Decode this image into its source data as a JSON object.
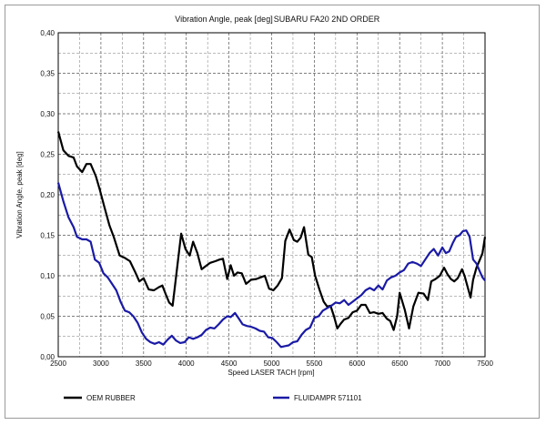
{
  "chart_data": {
    "type": "line",
    "title": "Vibration Angle, peak [deg]",
    "subtitle": "SUBARU FA20 2ND ORDER",
    "xlabel": "Speed LASER TACH [rpm]",
    "ylabel": "Vibration Angle, peak [deg]",
    "xlim": [
      2500,
      7500
    ],
    "ylim": [
      0,
      0.4
    ],
    "x_ticks": [
      2500,
      3000,
      3500,
      4000,
      4500,
      5000,
      5500,
      6000,
      6500,
      7000,
      7500
    ],
    "y_ticks": [
      "0,00",
      "0,05",
      "0,10",
      "0,15",
      "0,20",
      "0,25",
      "0,30",
      "0,35",
      "0,40"
    ],
    "grid": true,
    "legend_position": "bottom",
    "series": [
      {
        "name": "OEM RUBBER",
        "color": "#000000",
        "points": [
          [
            2500,
            0.278
          ],
          [
            2560,
            0.255
          ],
          [
            2620,
            0.248
          ],
          [
            2680,
            0.246
          ],
          [
            2720,
            0.235
          ],
          [
            2780,
            0.228
          ],
          [
            2830,
            0.238
          ],
          [
            2880,
            0.238
          ],
          [
            2940,
            0.223
          ],
          [
            2990,
            0.205
          ],
          [
            3040,
            0.185
          ],
          [
            3100,
            0.162
          ],
          [
            3150,
            0.148
          ],
          [
            3220,
            0.125
          ],
          [
            3280,
            0.122
          ],
          [
            3340,
            0.118
          ],
          [
            3400,
            0.105
          ],
          [
            3450,
            0.093
          ],
          [
            3500,
            0.097
          ],
          [
            3560,
            0.083
          ],
          [
            3620,
            0.082
          ],
          [
            3680,
            0.086
          ],
          [
            3720,
            0.088
          ],
          [
            3760,
            0.077
          ],
          [
            3800,
            0.067
          ],
          [
            3840,
            0.063
          ],
          [
            3880,
            0.098
          ],
          [
            3940,
            0.152
          ],
          [
            3990,
            0.133
          ],
          [
            4040,
            0.125
          ],
          [
            4080,
            0.142
          ],
          [
            4130,
            0.128
          ],
          [
            4180,
            0.108
          ],
          [
            4230,
            0.112
          ],
          [
            4280,
            0.116
          ],
          [
            4340,
            0.118
          ],
          [
            4390,
            0.12
          ],
          [
            4430,
            0.121
          ],
          [
            4480,
            0.096
          ],
          [
            4520,
            0.113
          ],
          [
            4560,
            0.1
          ],
          [
            4600,
            0.104
          ],
          [
            4650,
            0.103
          ],
          [
            4700,
            0.09
          ],
          [
            4760,
            0.095
          ],
          [
            4820,
            0.096
          ],
          [
            4870,
            0.098
          ],
          [
            4920,
            0.1
          ],
          [
            4970,
            0.084
          ],
          [
            5020,
            0.082
          ],
          [
            5070,
            0.088
          ],
          [
            5120,
            0.097
          ],
          [
            5160,
            0.143
          ],
          [
            5210,
            0.157
          ],
          [
            5260,
            0.144
          ],
          [
            5300,
            0.142
          ],
          [
            5340,
            0.147
          ],
          [
            5380,
            0.16
          ],
          [
            5430,
            0.126
          ],
          [
            5470,
            0.123
          ],
          [
            5510,
            0.1
          ],
          [
            5560,
            0.083
          ],
          [
            5610,
            0.068
          ],
          [
            5650,
            0.062
          ],
          [
            5690,
            0.063
          ],
          [
            5730,
            0.05
          ],
          [
            5770,
            0.035
          ],
          [
            5810,
            0.041
          ],
          [
            5850,
            0.046
          ],
          [
            5900,
            0.048
          ],
          [
            5950,
            0.055
          ],
          [
            6000,
            0.057
          ],
          [
            6050,
            0.064
          ],
          [
            6100,
            0.064
          ],
          [
            6150,
            0.054
          ],
          [
            6200,
            0.055
          ],
          [
            6250,
            0.053
          ],
          [
            6300,
            0.054
          ],
          [
            6350,
            0.047
          ],
          [
            6390,
            0.044
          ],
          [
            6430,
            0.033
          ],
          [
            6470,
            0.05
          ],
          [
            6500,
            0.079
          ],
          [
            6560,
            0.058
          ],
          [
            6610,
            0.035
          ],
          [
            6660,
            0.062
          ],
          [
            6720,
            0.079
          ],
          [
            6780,
            0.078
          ],
          [
            6830,
            0.07
          ],
          [
            6870,
            0.093
          ],
          [
            6920,
            0.096
          ],
          [
            6970,
            0.1
          ],
          [
            7020,
            0.11
          ],
          [
            7060,
            0.102
          ],
          [
            7100,
            0.096
          ],
          [
            7140,
            0.093
          ],
          [
            7180,
            0.097
          ],
          [
            7230,
            0.108
          ],
          [
            7260,
            0.1
          ],
          [
            7300,
            0.085
          ],
          [
            7330,
            0.073
          ],
          [
            7360,
            0.095
          ],
          [
            7400,
            0.11
          ],
          [
            7440,
            0.12
          ],
          [
            7470,
            0.128
          ],
          [
            7500,
            0.148
          ]
        ]
      },
      {
        "name": "FLUIDAMPR 571101",
        "color": "#1a1aa6",
        "points": [
          [
            2500,
            0.215
          ],
          [
            2560,
            0.192
          ],
          [
            2620,
            0.172
          ],
          [
            2680,
            0.16
          ],
          [
            2720,
            0.148
          ],
          [
            2780,
            0.145
          ],
          [
            2830,
            0.145
          ],
          [
            2880,
            0.142
          ],
          [
            2930,
            0.12
          ],
          [
            2980,
            0.116
          ],
          [
            3030,
            0.103
          ],
          [
            3080,
            0.098
          ],
          [
            3130,
            0.09
          ],
          [
            3180,
            0.082
          ],
          [
            3230,
            0.068
          ],
          [
            3280,
            0.057
          ],
          [
            3330,
            0.055
          ],
          [
            3380,
            0.05
          ],
          [
            3430,
            0.042
          ],
          [
            3480,
            0.03
          ],
          [
            3530,
            0.022
          ],
          [
            3580,
            0.018
          ],
          [
            3630,
            0.016
          ],
          [
            3680,
            0.018
          ],
          [
            3730,
            0.015
          ],
          [
            3780,
            0.021
          ],
          [
            3830,
            0.026
          ],
          [
            3880,
            0.02
          ],
          [
            3930,
            0.017
          ],
          [
            3980,
            0.018
          ],
          [
            4030,
            0.024
          ],
          [
            4080,
            0.022
          ],
          [
            4130,
            0.024
          ],
          [
            4180,
            0.027
          ],
          [
            4230,
            0.033
          ],
          [
            4280,
            0.036
          ],
          [
            4330,
            0.035
          ],
          [
            4380,
            0.04
          ],
          [
            4430,
            0.046
          ],
          [
            4480,
            0.05
          ],
          [
            4520,
            0.049
          ],
          [
            4570,
            0.054
          ],
          [
            4610,
            0.048
          ],
          [
            4660,
            0.04
          ],
          [
            4710,
            0.038
          ],
          [
            4760,
            0.037
          ],
          [
            4810,
            0.035
          ],
          [
            4860,
            0.032
          ],
          [
            4910,
            0.031
          ],
          [
            4960,
            0.024
          ],
          [
            5010,
            0.023
          ],
          [
            5060,
            0.018
          ],
          [
            5110,
            0.012
          ],
          [
            5150,
            0.013
          ],
          [
            5200,
            0.014
          ],
          [
            5250,
            0.018
          ],
          [
            5300,
            0.019
          ],
          [
            5350,
            0.027
          ],
          [
            5400,
            0.033
          ],
          [
            5450,
            0.036
          ],
          [
            5500,
            0.048
          ],
          [
            5550,
            0.05
          ],
          [
            5600,
            0.057
          ],
          [
            5650,
            0.06
          ],
          [
            5700,
            0.063
          ],
          [
            5750,
            0.067
          ],
          [
            5800,
            0.066
          ],
          [
            5850,
            0.07
          ],
          [
            5900,
            0.064
          ],
          [
            5950,
            0.068
          ],
          [
            6000,
            0.072
          ],
          [
            6050,
            0.076
          ],
          [
            6100,
            0.082
          ],
          [
            6150,
            0.085
          ],
          [
            6200,
            0.082
          ],
          [
            6250,
            0.088
          ],
          [
            6300,
            0.083
          ],
          [
            6350,
            0.094
          ],
          [
            6400,
            0.098
          ],
          [
            6450,
            0.1
          ],
          [
            6500,
            0.104
          ],
          [
            6550,
            0.107
          ],
          [
            6600,
            0.115
          ],
          [
            6650,
            0.117
          ],
          [
            6700,
            0.115
          ],
          [
            6750,
            0.112
          ],
          [
            6800,
            0.12
          ],
          [
            6850,
            0.128
          ],
          [
            6900,
            0.133
          ],
          [
            6950,
            0.125
          ],
          [
            7000,
            0.135
          ],
          [
            7040,
            0.128
          ],
          [
            7080,
            0.13
          ],
          [
            7120,
            0.14
          ],
          [
            7160,
            0.148
          ],
          [
            7200,
            0.15
          ],
          [
            7240,
            0.155
          ],
          [
            7280,
            0.156
          ],
          [
            7320,
            0.148
          ],
          [
            7360,
            0.12
          ],
          [
            7400,
            0.115
          ],
          [
            7440,
            0.105
          ],
          [
            7470,
            0.098
          ],
          [
            7500,
            0.094
          ]
        ]
      }
    ]
  }
}
